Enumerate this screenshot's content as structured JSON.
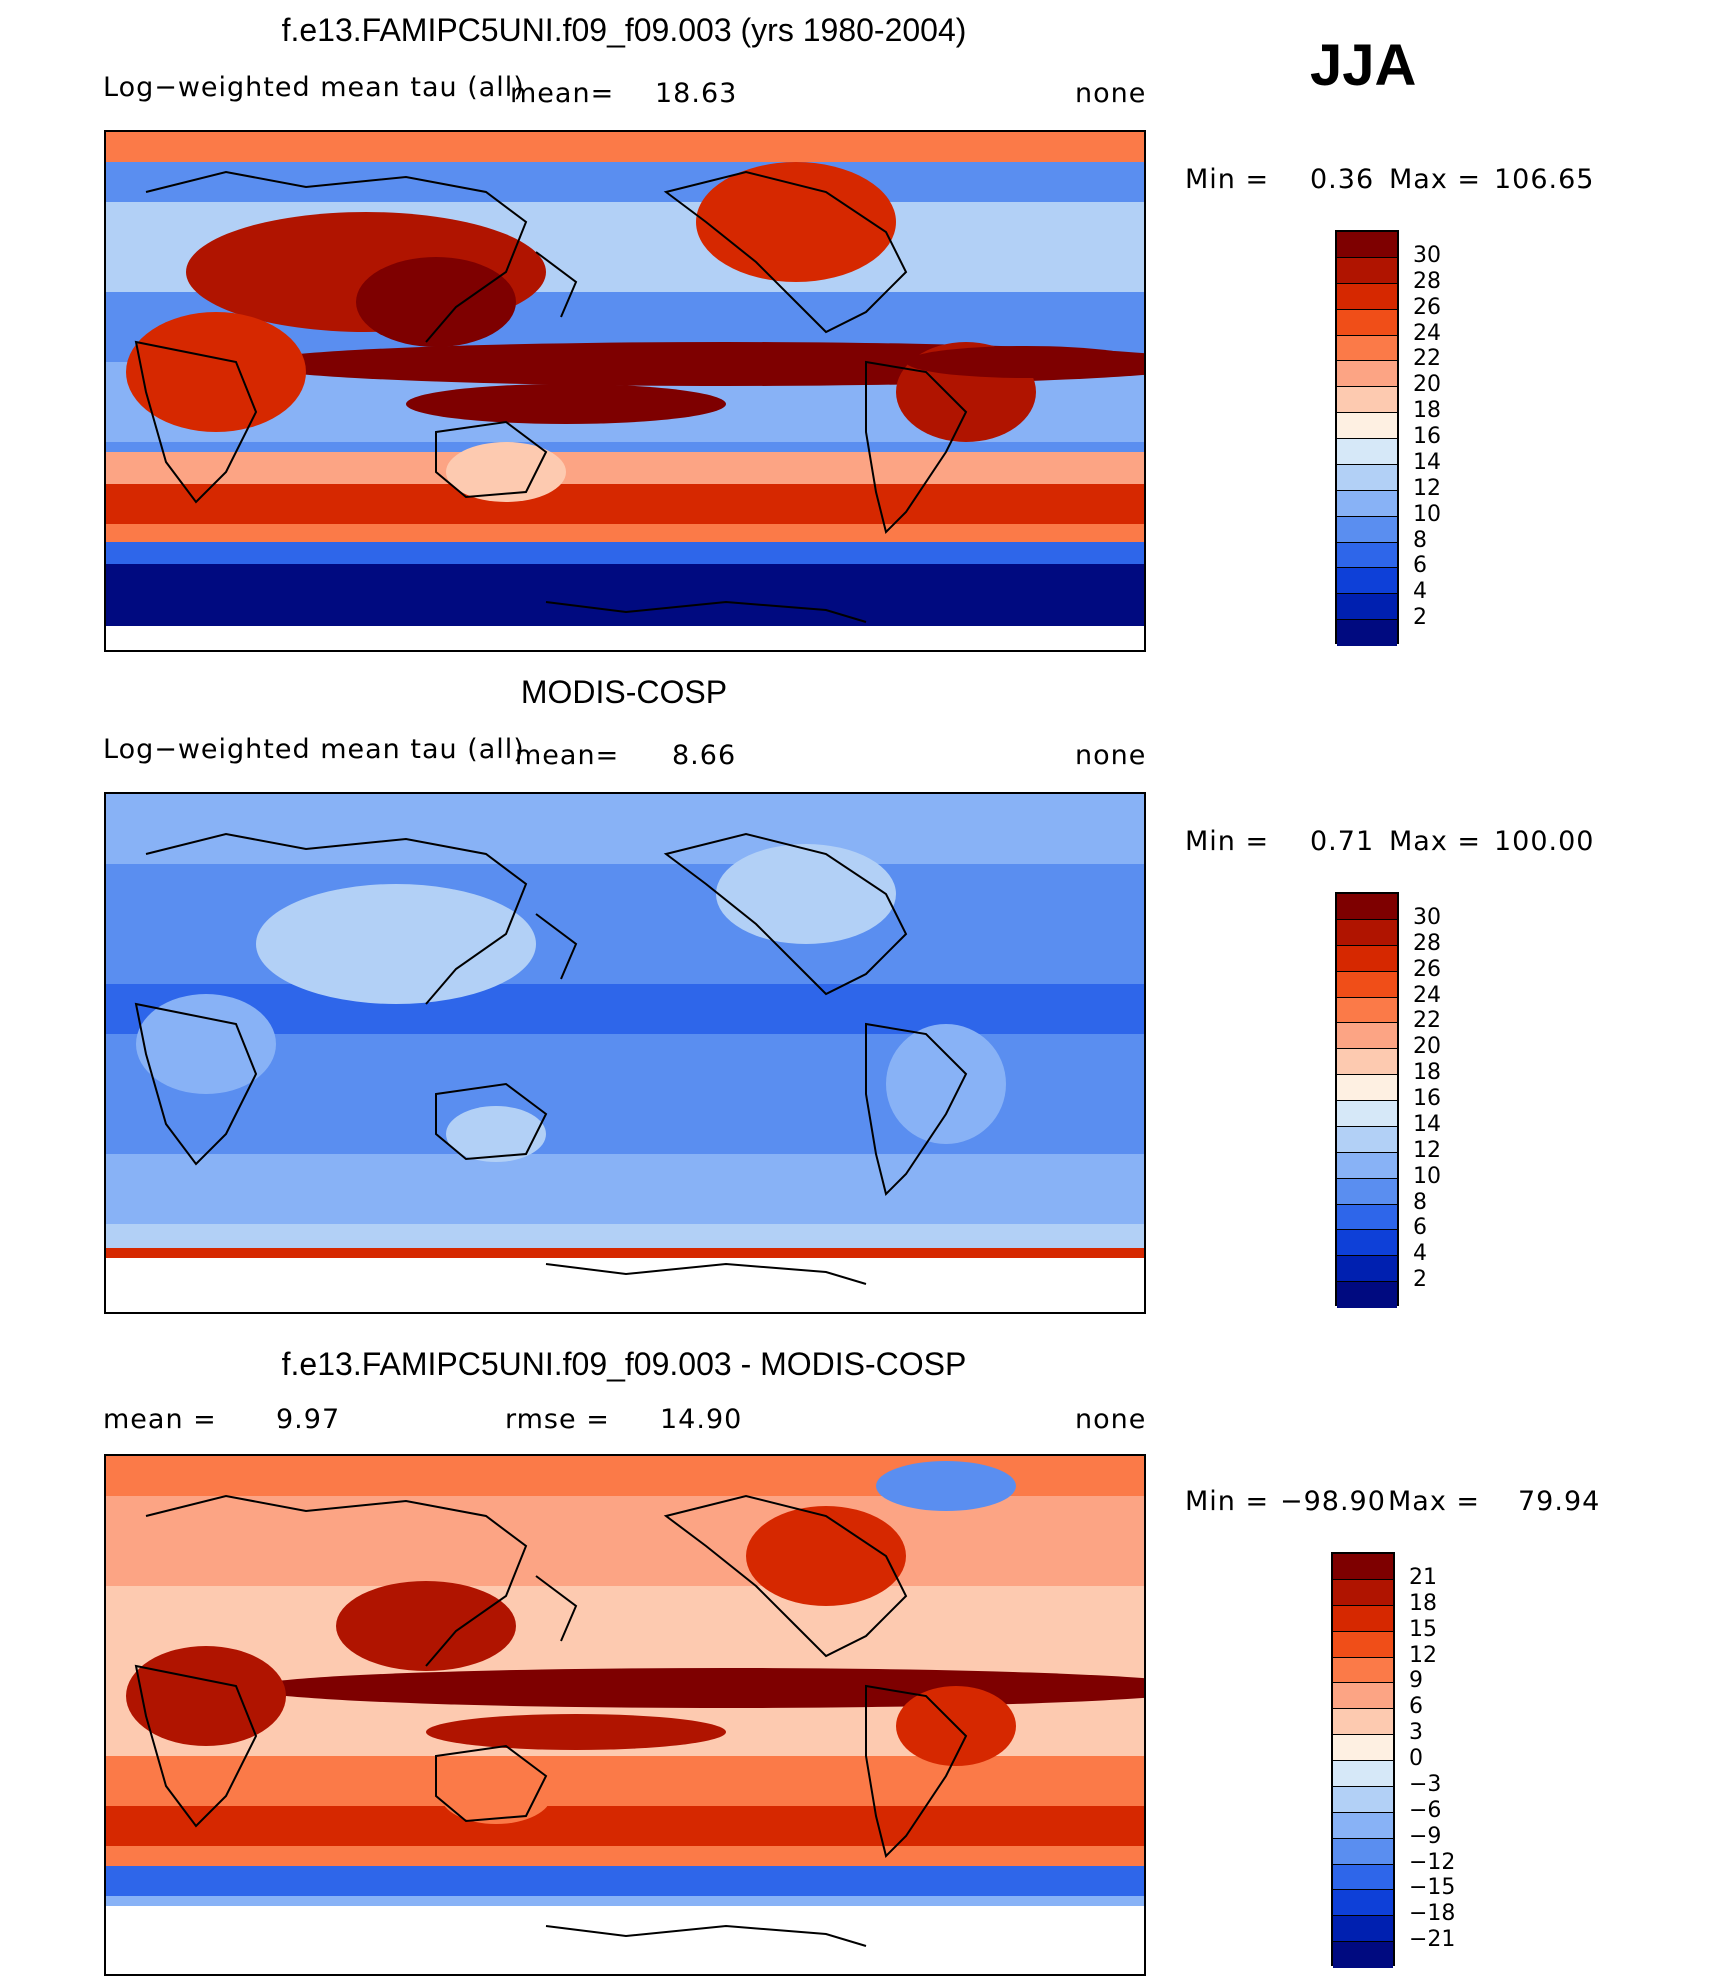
{
  "season": "JJA",
  "panels": [
    {
      "id": "model",
      "title": "f.e13.FAMIPC5UNI.f09_f09.003 (yrs 1980-2004)",
      "left_label": "Log−weighted  mean  tau  (all)",
      "stat_label": "mean=",
      "stat_value": "18.63",
      "right_label": "none",
      "min_label": "Min  =",
      "min_value": "0.36",
      "max_label": "Max  =",
      "max_value": "106.65",
      "levels": [
        "30",
        "28",
        "26",
        "24",
        "22",
        "20",
        "18",
        "16",
        "14",
        "12",
        "10",
        "8",
        "6",
        "4",
        "2"
      ],
      "colors": [
        "#7e0000",
        "#b01400",
        "#d62800",
        "#f04e18",
        "#fb7a48",
        "#fca484",
        "#fdcab0",
        "#fef0e2",
        "#d6e8f8",
        "#b2d0f6",
        "#88b2f6",
        "#5a8ef0",
        "#2e66ea",
        "#0e40d8",
        "#0020b0",
        "#000a80"
      ]
    },
    {
      "id": "obs",
      "title": "MODIS-COSP",
      "left_label": "Log−weighted  mean  tau  (all)",
      "stat_label": "mean=",
      "stat_value": "8.66",
      "right_label": "none",
      "min_label": "Min  =",
      "min_value": "0.71",
      "max_label": "Max  =",
      "max_value": "100.00",
      "levels": [
        "30",
        "28",
        "26",
        "24",
        "22",
        "20",
        "18",
        "16",
        "14",
        "12",
        "10",
        "8",
        "6",
        "4",
        "2"
      ],
      "colors": [
        "#7e0000",
        "#b01400",
        "#d62800",
        "#f04e18",
        "#fb7a48",
        "#fca484",
        "#fdcab0",
        "#fef0e2",
        "#d6e8f8",
        "#b2d0f6",
        "#88b2f6",
        "#5a8ef0",
        "#2e66ea",
        "#0e40d8",
        "#0020b0",
        "#000a80"
      ]
    },
    {
      "id": "diff",
      "title": "f.e13.FAMIPC5UNI.f09_f09.003 - MODIS-COSP",
      "mean_label": "mean  =",
      "mean_value": "9.97",
      "rmse_label": "rmse  =",
      "rmse_value": "14.90",
      "right_label": "none",
      "min_label": "Min  =",
      "min_value": "−98.90",
      "max_label": "Max  =",
      "max_value": "79.94",
      "levels": [
        "21",
        "18",
        "15",
        "12",
        "9",
        "6",
        "3",
        "0",
        "−3",
        "−6",
        "−9",
        "−12",
        "−15",
        "−18",
        "−21"
      ],
      "colors": [
        "#7e0000",
        "#b01400",
        "#d62800",
        "#f04e18",
        "#fb7a48",
        "#fca484",
        "#fdcab0",
        "#fef0e2",
        "#d6e8f8",
        "#b2d0f6",
        "#88b2f6",
        "#5a8ef0",
        "#2e66ea",
        "#0e40d8",
        "#0020b0",
        "#000a80"
      ]
    }
  ],
  "chart_data": [
    {
      "type": "heatmap",
      "title": "f.e13.FAMIPC5UNI.f09_f09.003 (yrs 1980-2004)",
      "subtitle": "Log-weighted mean tau (all)",
      "mean": 18.63,
      "min": 0.36,
      "max": 106.65,
      "units": "none",
      "contour_levels": [
        2,
        4,
        6,
        8,
        10,
        12,
        14,
        16,
        18,
        20,
        22,
        24,
        26,
        28,
        30
      ]
    },
    {
      "type": "heatmap",
      "title": "MODIS-COSP",
      "subtitle": "Log-weighted mean tau (all)",
      "mean": 8.66,
      "min": 0.71,
      "max": 100.0,
      "units": "none",
      "contour_levels": [
        2,
        4,
        6,
        8,
        10,
        12,
        14,
        16,
        18,
        20,
        22,
        24,
        26,
        28,
        30
      ]
    },
    {
      "type": "heatmap",
      "title": "f.e13.FAMIPC5UNI.f09_f09.003 - MODIS-COSP",
      "mean": 9.97,
      "rmse": 14.9,
      "min": -98.9,
      "max": 79.94,
      "units": "none",
      "contour_levels": [
        -21,
        -18,
        -15,
        -12,
        -9,
        -6,
        -3,
        0,
        3,
        6,
        9,
        12,
        15,
        18,
        21
      ]
    }
  ]
}
